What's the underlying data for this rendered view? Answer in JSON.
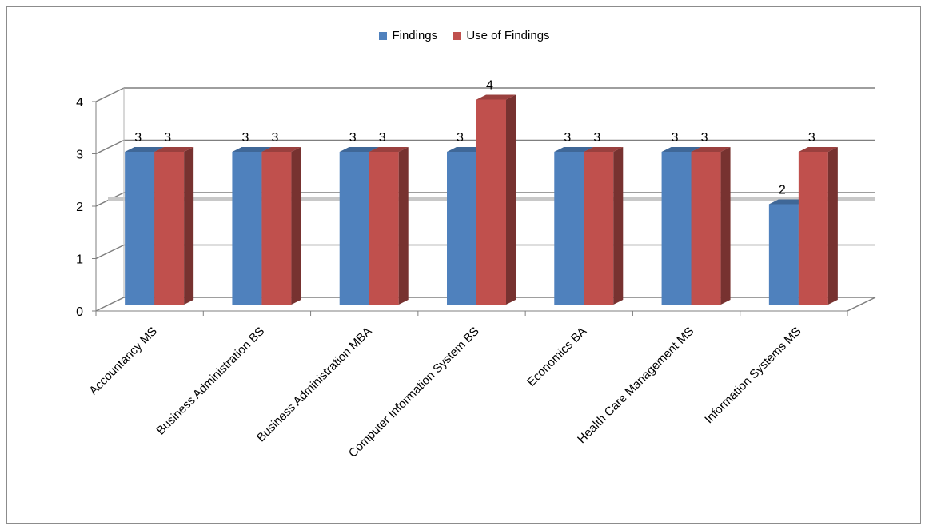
{
  "chart_data": {
    "type": "bar",
    "categories": [
      "Accountancy MS",
      "Business Administration BS",
      "Business Administration MBA",
      "Computer Information System BS",
      "Economics BA",
      "Health Care Management MS",
      "Information Systems MS"
    ],
    "series": [
      {
        "name": "Findings",
        "values": [
          3,
          3,
          3,
          3,
          3,
          3,
          2
        ],
        "color": "#4f81bd"
      },
      {
        "name": "Use of Findings",
        "values": [
          3,
          3,
          3,
          4,
          3,
          3,
          3
        ],
        "color": "#c0504d"
      }
    ],
    "ylim": [
      0,
      4
    ],
    "yticks": [
      0,
      1,
      2,
      3,
      4
    ],
    "title": "",
    "xlabel": "",
    "ylabel": "",
    "grid": true,
    "legend_position": "top",
    "style_3d": true
  }
}
